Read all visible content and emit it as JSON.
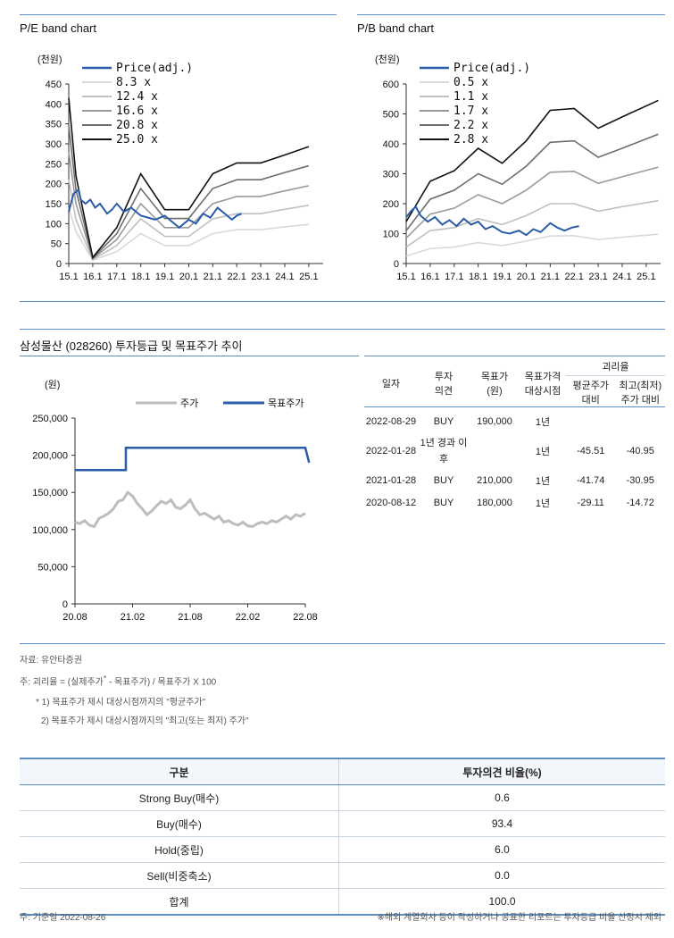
{
  "pe_chart": {
    "title": "P/E band chart",
    "unit": "(천원)",
    "legend": [
      "Price(adj.)",
      "8.3 x",
      "12.4 x",
      "16.6 x",
      "20.8 x",
      "25.0 x"
    ],
    "colors": [
      "#2a5ca8",
      "#d9d9d9",
      "#bfbfbf",
      "#9a9a9a",
      "#6e6e6e",
      "#111111"
    ],
    "x_ticks": [
      "15.1",
      "16.1",
      "17.1",
      "18.1",
      "19.1",
      "20.1",
      "21.1",
      "22.1",
      "23.1",
      "24.1",
      "25.1"
    ],
    "y_ticks": [
      "450",
      "400",
      "350",
      "300",
      "250",
      "200",
      "150",
      "100",
      "50",
      "0"
    ],
    "ylim": [
      0,
      450
    ],
    "xlim": [
      0,
      10.6
    ]
  },
  "pb_chart": {
    "title": "P/B band chart",
    "unit": "(천원)",
    "legend": [
      "Price(adj.)",
      "0.5 x",
      "1.1 x",
      "1.7 x",
      "2.2 x",
      "2.8 x"
    ],
    "colors": [
      "#2a5ca8",
      "#d9d9d9",
      "#bfbfbf",
      "#9a9a9a",
      "#6e6e6e",
      "#111111"
    ],
    "x_ticks": [
      "15.1",
      "16.1",
      "17.1",
      "18.1",
      "19.1",
      "20.1",
      "21.1",
      "22.1",
      "23.1",
      "24.1",
      "25.1"
    ],
    "y_ticks": [
      "600",
      "500",
      "400",
      "300",
      "200",
      "100",
      "0"
    ],
    "ylim": [
      0,
      600
    ],
    "xlim": [
      0,
      10.6
    ]
  },
  "rating_section": {
    "title": "삼성물산 (028260) 투자등급 및 목표주가 추이"
  },
  "target_chart": {
    "unit": "(원)",
    "legend": [
      "주가",
      "목표주가"
    ],
    "colors": [
      "#bdbdbd",
      "#2a5ca8"
    ],
    "x_ticks": [
      "20.08",
      "21.02",
      "21.08",
      "22.02",
      "22.08"
    ],
    "y_ticks": [
      "250,000",
      "200,000",
      "150,000",
      "100,000",
      "50,000",
      "0"
    ],
    "ylim": [
      0,
      250000
    ],
    "xlim": [
      0,
      24
    ]
  },
  "history_table": {
    "headers": {
      "date": "일자",
      "opinion_1": "투자",
      "opinion_2": "의견",
      "target_1": "목표가",
      "target_2": "(원)",
      "period_1": "목표가격",
      "period_2": "대상시점",
      "gap": "괴리율",
      "avg_1": "평균주가",
      "avg_2": "대비",
      "max_1": "최고(최저)",
      "max_2": "주가 대비"
    },
    "rows": [
      {
        "date": "2022-08-29",
        "opinion": "BUY",
        "target": "190,000",
        "period": "1년",
        "avg": "",
        "max": ""
      },
      {
        "date": "2022-01-28",
        "opinion": "1년 경과 이후",
        "target": "",
        "period": "1년",
        "avg": "-45.51",
        "max": "-40.95"
      },
      {
        "date": "2021-01-28",
        "opinion": "BUY",
        "target": "210,000",
        "period": "1년",
        "avg": "-41.74",
        "max": "-30.95"
      },
      {
        "date": "2020-08-12",
        "opinion": "BUY",
        "target": "180,000",
        "period": "1년",
        "avg": "-29.11",
        "max": "-14.72"
      }
    ]
  },
  "notes": {
    "source": "자료: 유안타증권",
    "formula_a": "주: 괴리율 = (실제주가",
    "formula_sup": "*",
    "formula_b": " - 목표주가) / 목표주가 X 100",
    "note1": "* 1) 목표주가 제시 대상시점까지의 \"평균주가\"",
    "note2": "2) 목표주가 제시 대상시점까지의 \"최고(또는 최저) 주가\""
  },
  "distribution_table": {
    "headers": [
      "구분",
      "투자의견 비율(%)"
    ],
    "rows": [
      {
        "label": "Strong Buy(매수)",
        "value": "0.6"
      },
      {
        "label": "Buy(매수)",
        "value": "93.4"
      },
      {
        "label": "Hold(중립)",
        "value": "6.0"
      },
      {
        "label": "Sell(비중축소)",
        "value": "0.0"
      }
    ],
    "total": {
      "label": "합계",
      "value": "100.0"
    }
  },
  "footer": {
    "left": "주: 기준일  2022-08-26",
    "right": "※해외 계열회사 등이 작성하거나 공표한 리포트는 투자등급 비율 산정시 제외"
  },
  "chart_data": [
    {
      "type": "line",
      "title": "P/E band chart",
      "ylabel": "(천원)",
      "x_ticks": [
        "15.1",
        "16.1",
        "17.1",
        "18.1",
        "19.1",
        "20.1",
        "21.1",
        "22.1",
        "23.1",
        "24.1",
        "25.1"
      ],
      "ylim": [
        0,
        450
      ],
      "bands_x": [
        0,
        0.3,
        1,
        2,
        3,
        4,
        5,
        6,
        7,
        8,
        9,
        10
      ],
      "series": [
        {
          "name": "8.3 x",
          "values": [
            140,
            80,
            8,
            30,
            75,
            45,
            45,
            75,
            85,
            85,
            92,
            98
          ]
        },
        {
          "name": "12.4 x",
          "values": [
            210,
            110,
            10,
            45,
            112,
            68,
            68,
            112,
            125,
            125,
            136,
            146
          ]
        },
        {
          "name": "16.6 x",
          "values": [
            280,
            150,
            12,
            60,
            150,
            90,
            90,
            150,
            168,
            168,
            182,
            195
          ]
        },
        {
          "name": "20.8 x",
          "values": [
            345,
            185,
            13,
            75,
            188,
            113,
            113,
            188,
            210,
            210,
            228,
            245
          ]
        },
        {
          "name": "25.0 x",
          "values": [
            415,
            220,
            15,
            90,
            225,
            135,
            135,
            225,
            252,
            252,
            272,
            293
          ]
        }
      ],
      "price": {
        "name": "Price(adj.)",
        "x": [
          0,
          0.2,
          0.4,
          0.5,
          0.7,
          0.9,
          1.1,
          1.3,
          1.6,
          1.8,
          2.0,
          2.3,
          2.6,
          3.0,
          3.3,
          3.6,
          4.0,
          4.3,
          4.6,
          5.0,
          5.3,
          5.6,
          5.9,
          6.2,
          6.5,
          6.8,
          7.0,
          7.2
        ],
        "values": [
          130,
          175,
          185,
          160,
          150,
          160,
          140,
          150,
          125,
          135,
          150,
          130,
          140,
          120,
          115,
          110,
          120,
          105,
          90,
          110,
          100,
          125,
          115,
          140,
          125,
          110,
          120,
          125
        ]
      }
    },
    {
      "type": "line",
      "title": "P/B band chart",
      "ylabel": "(천원)",
      "x_ticks": [
        "15.1",
        "16.1",
        "17.1",
        "18.1",
        "19.1",
        "20.1",
        "21.1",
        "22.1",
        "23.1",
        "24.1",
        "25.1"
      ],
      "ylim": [
        0,
        600
      ],
      "bands_x": [
        0,
        1,
        2,
        3,
        4,
        5,
        6,
        7,
        8,
        9,
        10.5
      ],
      "series": [
        {
          "name": "0.5 x",
          "values": [
            25,
            50,
            55,
            70,
            60,
            75,
            92,
            93,
            80,
            88,
            98
          ]
        },
        {
          "name": "1.1 x",
          "values": [
            55,
            110,
            120,
            150,
            130,
            160,
            200,
            200,
            175,
            190,
            210
          ]
        },
        {
          "name": "1.7 x",
          "values": [
            85,
            165,
            185,
            230,
            200,
            245,
            305,
            308,
            268,
            290,
            322
          ]
        },
        {
          "name": "2.2 x",
          "values": [
            110,
            215,
            245,
            300,
            265,
            325,
            405,
            410,
            355,
            385,
            432
          ]
        },
        {
          "name": "2.8 x",
          "values": [
            140,
            275,
            310,
            385,
            335,
            410,
            512,
            518,
            452,
            490,
            545
          ]
        }
      ],
      "price": {
        "name": "Price(adj.)",
        "x": [
          0,
          0.2,
          0.4,
          0.6,
          0.9,
          1.2,
          1.5,
          1.8,
          2.1,
          2.4,
          2.7,
          3.0,
          3.3,
          3.6,
          4.0,
          4.3,
          4.7,
          5.0,
          5.3,
          5.6,
          6.0,
          6.3,
          6.6,
          6.9,
          7.2
        ],
        "values": [
          155,
          175,
          190,
          160,
          140,
          155,
          130,
          145,
          125,
          150,
          130,
          140,
          115,
          125,
          105,
          100,
          110,
          95,
          115,
          105,
          135,
          120,
          110,
          120,
          125
        ]
      }
    },
    {
      "type": "line",
      "ylabel": "(원)",
      "x_ticks": [
        "20.08",
        "21.02",
        "21.08",
        "22.02",
        "22.08"
      ],
      "ylim": [
        0,
        250000
      ],
      "series": [
        {
          "name": "주가",
          "x": [
            0,
            0.5,
            1,
            1.5,
            2,
            2.5,
            3,
            3.5,
            4,
            4.5,
            5,
            5.5,
            6,
            6.5,
            7,
            7.5,
            8,
            8.5,
            9,
            9.5,
            10,
            10.5,
            11,
            11.5,
            12,
            12.5,
            13,
            13.5,
            14,
            14.5,
            15,
            15.5,
            16,
            16.5,
            17,
            17.5,
            18,
            18.5,
            19,
            19.5,
            20,
            20.5,
            21,
            21.5,
            22,
            22.5,
            23,
            23.5,
            24
          ],
          "values": [
            110000,
            108000,
            112000,
            106000,
            104000,
            115000,
            118000,
            122000,
            128000,
            138000,
            140000,
            150000,
            145000,
            135000,
            128000,
            120000,
            125000,
            132000,
            138000,
            135000,
            140000,
            130000,
            128000,
            133000,
            140000,
            128000,
            120000,
            122000,
            118000,
            114000,
            118000,
            110000,
            112000,
            108000,
            106000,
            110000,
            105000,
            104000,
            108000,
            110000,
            108000,
            112000,
            110000,
            114000,
            118000,
            114000,
            120000,
            118000,
            122000
          ]
        },
        {
          "name": "목표주가",
          "x": [
            0,
            5.3,
            5.3,
            24,
            24,
            24.4
          ],
          "values": [
            180000,
            180000,
            210000,
            210000,
            210000,
            190000
          ]
        }
      ]
    }
  ]
}
